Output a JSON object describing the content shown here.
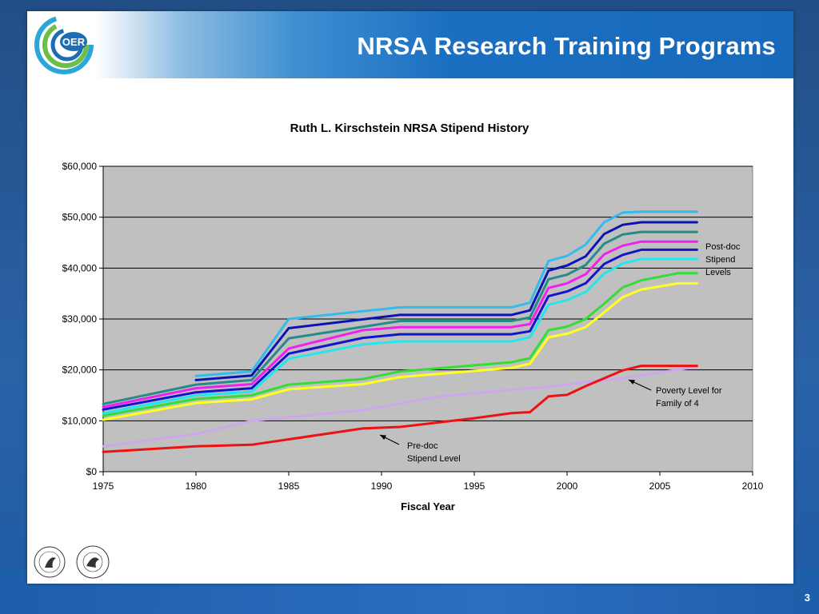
{
  "slide": {
    "title": "NRSA Research Training Programs",
    "logo_text": "OER",
    "page_number": "3",
    "nih_seal_text": "NATIONAL INSTITUTES OF HEALTH",
    "hhs_seal_text": "DEPARTMENT OF HEALTH & HUMAN SERVICES USA"
  },
  "colors": {
    "header_blue": "#1769bb",
    "background_blue": "#224e86",
    "plot_bg": "#c0c0c0"
  },
  "chart_data": {
    "type": "line",
    "title": "Ruth L. Kirschstein NRSA Stipend History",
    "xlabel": "Fiscal Year",
    "ylabel": "",
    "xlim": [
      1975,
      2010
    ],
    "ylim": [
      0,
      60000
    ],
    "x_ticks": [
      1975,
      1980,
      1985,
      1990,
      1995,
      2000,
      2005,
      2010
    ],
    "y_ticks": [
      {
        "value": 0,
        "label": "$0"
      },
      {
        "value": 10000,
        "label": "$10,000"
      },
      {
        "value": 20000,
        "label": "$20,000"
      },
      {
        "value": 30000,
        "label": "$30,000"
      },
      {
        "value": 40000,
        "label": "$40,000"
      },
      {
        "value": 50000,
        "label": "$50,000"
      },
      {
        "value": 60000,
        "label": "$60,000"
      }
    ],
    "grid": "horizontal",
    "legend": "none",
    "series": [
      {
        "color": "#33bbee",
        "points": [
          [
            1980,
            18800
          ],
          [
            1983,
            19700
          ],
          [
            1985,
            30000
          ],
          [
            1991,
            32300
          ],
          [
            1997,
            32300
          ],
          [
            1998,
            33200
          ],
          [
            1999,
            41400
          ],
          [
            2000,
            42400
          ],
          [
            2001,
            44600
          ],
          [
            2002,
            49000
          ],
          [
            2003,
            50900
          ],
          [
            2004,
            51100
          ],
          [
            2007,
            51100
          ]
        ]
      },
      {
        "color": "#0a14b4",
        "points": [
          [
            1980,
            18000
          ],
          [
            1983,
            18900
          ],
          [
            1985,
            28200
          ],
          [
            1991,
            30800
          ],
          [
            1997,
            30800
          ],
          [
            1998,
            31700
          ],
          [
            1999,
            39500
          ],
          [
            2000,
            40500
          ],
          [
            2001,
            42300
          ],
          [
            2002,
            46700
          ],
          [
            2003,
            48500
          ],
          [
            2004,
            49000
          ],
          [
            2007,
            49000
          ]
        ]
      },
      {
        "color": "#238c87",
        "points": [
          [
            1975,
            13300
          ],
          [
            1980,
            17100
          ],
          [
            1983,
            18000
          ],
          [
            1985,
            26200
          ],
          [
            1991,
            29600
          ],
          [
            1997,
            29600
          ],
          [
            1998,
            30300
          ],
          [
            1999,
            37800
          ],
          [
            2000,
            38700
          ],
          [
            2001,
            40600
          ],
          [
            2002,
            44800
          ],
          [
            2003,
            46600
          ],
          [
            2004,
            47100
          ],
          [
            2007,
            47100
          ]
        ]
      },
      {
        "color": "#ee22ee",
        "points": [
          [
            1975,
            12700
          ],
          [
            1980,
            16400
          ],
          [
            1983,
            17200
          ],
          [
            1985,
            24200
          ],
          [
            1989,
            27800
          ],
          [
            1991,
            28400
          ],
          [
            1997,
            28400
          ],
          [
            1998,
            29000
          ],
          [
            1999,
            36100
          ],
          [
            2000,
            37000
          ],
          [
            2001,
            38800
          ],
          [
            2002,
            42700
          ],
          [
            2003,
            44400
          ],
          [
            2004,
            45200
          ],
          [
            2007,
            45200
          ]
        ]
      },
      {
        "color": "#1414cc",
        "points": [
          [
            1975,
            12200
          ],
          [
            1980,
            15600
          ],
          [
            1983,
            16400
          ],
          [
            1985,
            23200
          ],
          [
            1989,
            26300
          ],
          [
            1991,
            27000
          ],
          [
            1997,
            27000
          ],
          [
            1998,
            27600
          ],
          [
            1999,
            34500
          ],
          [
            2000,
            35400
          ],
          [
            2001,
            37000
          ],
          [
            2002,
            40800
          ],
          [
            2003,
            42600
          ],
          [
            2004,
            43600
          ],
          [
            2007,
            43600
          ]
        ]
      },
      {
        "color": "#22e6ee",
        "points": [
          [
            1975,
            11500
          ],
          [
            1980,
            15000
          ],
          [
            1983,
            15700
          ],
          [
            1985,
            22200
          ],
          [
            1989,
            25000
          ],
          [
            1991,
            25600
          ],
          [
            1997,
            25600
          ],
          [
            1998,
            26400
          ],
          [
            1999,
            32800
          ],
          [
            2000,
            33700
          ],
          [
            2001,
            35300
          ],
          [
            2002,
            38900
          ],
          [
            2003,
            40900
          ],
          [
            2004,
            41800
          ],
          [
            2007,
            41800
          ]
        ]
      },
      {
        "color": "#33dd33",
        "points": [
          [
            1975,
            11000
          ],
          [
            1980,
            14300
          ],
          [
            1983,
            15000
          ],
          [
            1985,
            17100
          ],
          [
            1989,
            18200
          ],
          [
            1991,
            19700
          ],
          [
            1997,
            21500
          ],
          [
            1998,
            22300
          ],
          [
            1999,
            27800
          ],
          [
            2000,
            28500
          ],
          [
            2001,
            30000
          ],
          [
            2002,
            33000
          ],
          [
            2003,
            36200
          ],
          [
            2004,
            37600
          ],
          [
            2006,
            39000
          ],
          [
            2007,
            39000
          ]
        ]
      },
      {
        "color": "#ffff22",
        "points": [
          [
            1975,
            10200
          ],
          [
            1980,
            13500
          ],
          [
            1983,
            14200
          ],
          [
            1985,
            16200
          ],
          [
            1989,
            17200
          ],
          [
            1991,
            18600
          ],
          [
            1997,
            20400
          ],
          [
            1998,
            21200
          ],
          [
            1999,
            26400
          ],
          [
            2000,
            27100
          ],
          [
            2001,
            28400
          ],
          [
            2002,
            31300
          ],
          [
            2003,
            34300
          ],
          [
            2004,
            35800
          ],
          [
            2006,
            37000
          ],
          [
            2007,
            37000
          ]
        ]
      },
      {
        "color": "#cfa6ee",
        "points": [
          [
            1975,
            5000
          ],
          [
            1980,
            7400
          ],
          [
            1983,
            10000
          ],
          [
            1989,
            12100
          ],
          [
            1991,
            13400
          ],
          [
            1993,
            14700
          ],
          [
            1997,
            16100
          ],
          [
            1999,
            16700
          ],
          [
            2001,
            17600
          ],
          [
            2003,
            18400
          ],
          [
            2005,
            19500
          ],
          [
            2007,
            20600
          ]
        ]
      },
      {
        "color": "#ee1111",
        "points": [
          [
            1975,
            3900
          ],
          [
            1980,
            5000
          ],
          [
            1983,
            5300
          ],
          [
            1989,
            8500
          ],
          [
            1991,
            8800
          ],
          [
            1995,
            10500
          ],
          [
            1997,
            11500
          ],
          [
            1998,
            11700
          ],
          [
            1999,
            14800
          ],
          [
            2000,
            15100
          ],
          [
            2001,
            16800
          ],
          [
            2003,
            19900
          ],
          [
            2004,
            20800
          ],
          [
            2007,
            20800
          ]
        ]
      }
    ],
    "annotations": [
      {
        "lines": [
          "Post-doc",
          "Stipend",
          "Levels"
        ]
      },
      {
        "lines": [
          "Poverty Level for",
          "Family of 4"
        ]
      },
      {
        "lines": [
          "Pre-doc",
          "Stipend Level"
        ]
      }
    ]
  }
}
